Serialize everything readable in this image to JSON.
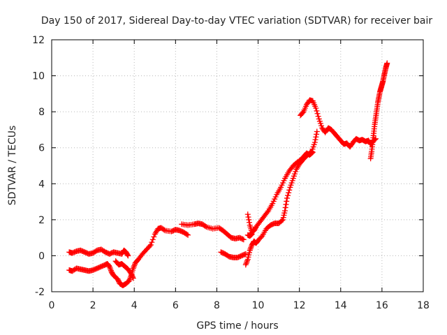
{
  "chart_data": {
    "type": "scatter",
    "title": "Day 150 of 2017, Sidereal Day-to-day VTEC variation (SDTVAR) for receiver bair",
    "xlabel": "GPS time / hours",
    "ylabel": "SDTVAR / TECUs",
    "xlim": [
      0,
      18
    ],
    "ylim": [
      -2,
      12
    ],
    "x_ticks": [
      "0",
      "2",
      "4",
      "6",
      "8",
      "10",
      "12",
      "14",
      "16",
      "18"
    ],
    "y_ticks": [
      "-2",
      "0",
      "2",
      "4",
      "6",
      "8",
      "10",
      "12"
    ],
    "grid": true,
    "legend": "none",
    "marker": "plus",
    "color": "#ff0000",
    "series": [
      {
        "values": [
          [
            0.85,
            0.2
          ],
          [
            1.0,
            0.15
          ],
          [
            1.2,
            0.25
          ],
          [
            1.4,
            0.3
          ],
          [
            1.6,
            0.2
          ],
          [
            1.8,
            0.1
          ],
          [
            2.0,
            0.15
          ],
          [
            2.2,
            0.3
          ],
          [
            2.4,
            0.35
          ],
          [
            2.6,
            0.2
          ],
          [
            2.8,
            0.1
          ],
          [
            3.0,
            0.2
          ],
          [
            3.2,
            0.15
          ],
          [
            3.4,
            0.1
          ],
          [
            3.5,
            0.3
          ],
          [
            3.6,
            0.2
          ],
          [
            3.7,
            0.0
          ]
        ]
      },
      {
        "values": [
          [
            0.85,
            -0.8
          ],
          [
            1.0,
            -0.85
          ],
          [
            1.2,
            -0.7
          ],
          [
            1.4,
            -0.75
          ],
          [
            1.6,
            -0.8
          ],
          [
            1.8,
            -0.85
          ],
          [
            2.0,
            -0.8
          ],
          [
            2.2,
            -0.7
          ],
          [
            2.4,
            -0.6
          ],
          [
            2.6,
            -0.5
          ],
          [
            2.7,
            -0.45
          ],
          [
            2.8,
            -0.6
          ],
          [
            2.9,
            -0.9
          ],
          [
            3.0,
            -1.1
          ],
          [
            3.2,
            -1.3
          ],
          [
            3.3,
            -1.55
          ],
          [
            3.45,
            -1.65
          ],
          [
            3.6,
            -1.55
          ],
          [
            3.75,
            -1.4
          ],
          [
            3.85,
            -1.1
          ],
          [
            3.95,
            -0.7
          ],
          [
            4.05,
            -0.4
          ],
          [
            4.2,
            -0.2
          ],
          [
            4.4,
            0.1
          ],
          [
            4.6,
            0.35
          ],
          [
            4.8,
            0.6
          ],
          [
            5.0,
            1.2
          ],
          [
            5.15,
            1.5
          ],
          [
            5.3,
            1.55
          ],
          [
            5.5,
            1.4
          ],
          [
            5.8,
            1.35
          ],
          [
            6.0,
            1.45
          ],
          [
            6.2,
            1.4
          ],
          [
            6.4,
            1.3
          ],
          [
            6.6,
            1.15
          ]
        ]
      },
      {
        "values": [
          [
            3.1,
            -0.3
          ],
          [
            3.25,
            -0.5
          ],
          [
            3.4,
            -0.45
          ],
          [
            3.55,
            -0.6
          ],
          [
            3.7,
            -0.75
          ],
          [
            3.85,
            -1.0
          ],
          [
            3.95,
            -1.25
          ]
        ]
      },
      {
        "values": [
          [
            6.3,
            1.75
          ],
          [
            6.6,
            1.7
          ],
          [
            6.9,
            1.75
          ],
          [
            7.1,
            1.8
          ],
          [
            7.3,
            1.75
          ],
          [
            7.5,
            1.6
          ],
          [
            7.8,
            1.5
          ],
          [
            8.1,
            1.55
          ],
          [
            8.3,
            1.4
          ],
          [
            8.5,
            1.2
          ],
          [
            8.7,
            1.0
          ],
          [
            8.9,
            0.95
          ],
          [
            9.1,
            1.0
          ],
          [
            9.3,
            0.9
          ]
        ]
      },
      {
        "values": [
          [
            8.2,
            0.2
          ],
          [
            8.4,
            0.1
          ],
          [
            8.6,
            -0.05
          ],
          [
            8.8,
            -0.1
          ],
          [
            9.0,
            -0.1
          ],
          [
            9.2,
            0.0
          ],
          [
            9.4,
            0.1
          ]
        ]
      },
      {
        "values": [
          [
            9.5,
            2.3
          ],
          [
            9.6,
            1.7
          ],
          [
            9.7,
            1.3
          ],
          [
            9.8,
            1.4
          ],
          [
            9.9,
            1.6
          ],
          [
            10.1,
            1.9
          ],
          [
            10.3,
            2.2
          ],
          [
            10.5,
            2.5
          ],
          [
            10.7,
            2.9
          ],
          [
            10.9,
            3.4
          ],
          [
            11.1,
            3.8
          ],
          [
            11.3,
            4.3
          ],
          [
            11.5,
            4.7
          ],
          [
            11.7,
            5.0
          ],
          [
            11.9,
            5.2
          ],
          [
            12.1,
            5.35
          ],
          [
            12.2,
            5.5
          ],
          [
            12.35,
            5.7
          ],
          [
            12.5,
            5.6
          ],
          [
            12.65,
            5.75
          ]
        ]
      },
      {
        "values": [
          [
            9.4,
            -0.5
          ],
          [
            9.5,
            -0.2
          ],
          [
            9.6,
            0.3
          ],
          [
            9.7,
            0.6
          ],
          [
            9.8,
            0.8
          ],
          [
            9.9,
            0.7
          ],
          [
            10.0,
            0.85
          ],
          [
            10.2,
            1.1
          ],
          [
            10.4,
            1.5
          ],
          [
            10.6,
            1.7
          ],
          [
            10.8,
            1.8
          ],
          [
            11.0,
            1.8
          ],
          [
            11.2,
            2.0
          ],
          [
            11.3,
            2.5
          ],
          [
            11.4,
            3.2
          ],
          [
            11.55,
            3.8
          ],
          [
            11.7,
            4.3
          ],
          [
            11.85,
            4.8
          ],
          [
            12.0,
            5.1
          ],
          [
            12.15,
            5.3
          ],
          [
            12.3,
            5.5
          ],
          [
            12.5,
            5.7
          ],
          [
            12.6,
            5.8
          ],
          [
            12.75,
            6.3
          ],
          [
            12.85,
            6.9
          ]
        ]
      },
      {
        "values": [
          [
            12.05,
            7.8
          ],
          [
            12.2,
            8.0
          ],
          [
            12.35,
            8.4
          ],
          [
            12.5,
            8.65
          ],
          [
            12.65,
            8.6
          ],
          [
            12.8,
            8.2
          ],
          [
            12.95,
            7.6
          ],
          [
            13.1,
            7.1
          ],
          [
            13.25,
            6.85
          ],
          [
            13.4,
            7.1
          ],
          [
            13.55,
            7.0
          ],
          [
            13.7,
            6.8
          ],
          [
            13.85,
            6.6
          ],
          [
            14.0,
            6.4
          ],
          [
            14.15,
            6.2
          ],
          [
            14.3,
            6.25
          ],
          [
            14.45,
            6.05
          ],
          [
            14.6,
            6.3
          ],
          [
            14.75,
            6.5
          ],
          [
            14.9,
            6.4
          ],
          [
            15.05,
            6.45
          ],
          [
            15.2,
            6.35
          ],
          [
            15.35,
            6.4
          ],
          [
            15.45,
            6.2
          ],
          [
            15.55,
            6.35
          ],
          [
            15.7,
            6.5
          ]
        ]
      },
      {
        "values": [
          [
            15.45,
            5.4
          ],
          [
            15.5,
            5.8
          ],
          [
            15.55,
            6.3
          ],
          [
            15.6,
            6.8
          ],
          [
            15.65,
            7.3
          ],
          [
            15.7,
            7.7
          ],
          [
            15.75,
            8.1
          ],
          [
            15.8,
            8.5
          ],
          [
            15.85,
            8.8
          ],
          [
            15.9,
            9.1
          ],
          [
            15.95,
            9.3
          ],
          [
            16.0,
            9.5
          ],
          [
            16.05,
            9.7
          ],
          [
            16.1,
            10.0
          ],
          [
            16.15,
            10.25
          ],
          [
            16.2,
            10.5
          ],
          [
            16.25,
            10.7
          ]
        ]
      },
      {
        "values": [
          [
            9.5,
            1.15
          ],
          [
            9.6,
            1.1
          ],
          [
            9.7,
            1.2
          ]
        ]
      }
    ]
  }
}
